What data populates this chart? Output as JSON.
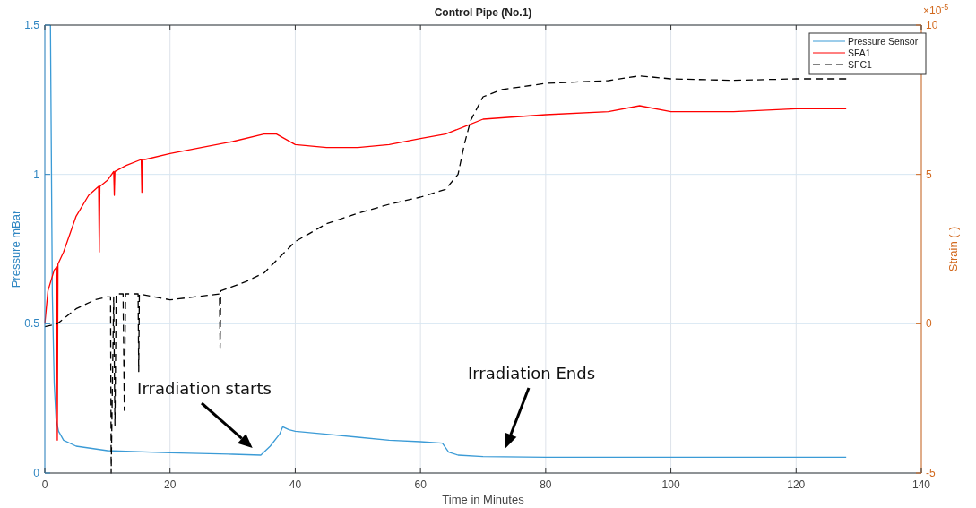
{
  "chart_data": {
    "type": "line",
    "title": "Control Pipe (No.1)",
    "xlabel": "Time in Minutes",
    "ylabel": "Pressure mBar",
    "y2label": "Strain (-)",
    "xlim": [
      0,
      140
    ],
    "xticks": [
      0,
      20,
      40,
      60,
      80,
      100,
      120,
      140
    ],
    "ylim": [
      0,
      1.5
    ],
    "yticks": [
      0,
      0.5,
      1,
      1.5
    ],
    "y2lim": [
      -5,
      10
    ],
    "y2ticks": [
      -5,
      0,
      5,
      10
    ],
    "grid": true,
    "legend": "top right",
    "annotations": [
      "×10$^{-5}$",
      "Irradiation starts",
      "Irradiation Ends"
    ],
    "series": [
      {
        "name": "Pressure Sensor",
        "color": "#3b9bd6",
        "line_style": "solid",
        "x": [
          0.9,
          1.2,
          1.5,
          1.8,
          2.2,
          3,
          5,
          10,
          20,
          30,
          34.5,
          36,
          37.5,
          38,
          39,
          40,
          45,
          50,
          55,
          60,
          63.5,
          64.5,
          66,
          70,
          80,
          100,
          128
        ],
        "values": [
          1.5,
          0.6,
          0.3,
          0.18,
          0.14,
          0.11,
          0.09,
          0.075,
          0.068,
          0.063,
          0.06,
          0.09,
          0.13,
          0.155,
          0.145,
          0.14,
          0.13,
          0.12,
          0.11,
          0.105,
          0.1,
          0.07,
          0.06,
          0.055,
          0.053,
          0.053,
          0.053
        ]
      },
      {
        "name": "SFA1",
        "color": "#ff0000",
        "line_style": "solid",
        "axis": "y2",
        "x": [
          0,
          0.5,
          1.5,
          1.9,
          2,
          2.1,
          3,
          5,
          7,
          8.6,
          8.7,
          8.8,
          10,
          11,
          11.1,
          11.2,
          13,
          15.4,
          15.5,
          15.6,
          16,
          20,
          25,
          30,
          35,
          37,
          40,
          45,
          50,
          55,
          60,
          64,
          67,
          70,
          80,
          90,
          95,
          100,
          110,
          120,
          128
        ],
        "values": [
          0,
          1.1,
          1.8,
          1.9,
          -3.9,
          2,
          2.4,
          3.6,
          4.3,
          4.6,
          2.4,
          4.6,
          4.8,
          5.1,
          4.3,
          5.1,
          5.3,
          5.5,
          4.4,
          5.5,
          5.5,
          5.7,
          5.9,
          6.1,
          6.35,
          6.35,
          6.0,
          5.9,
          5.9,
          6.0,
          6.2,
          6.35,
          6.6,
          6.85,
          7.0,
          7.1,
          7.3,
          7.1,
          7.1,
          7.2,
          7.2
        ]
      },
      {
        "name": "SFC1",
        "color": "#000000",
        "line_style": "dashed",
        "axis": "y2",
        "x": [
          0,
          2,
          5,
          8,
          10,
          10.5,
          10.6,
          11,
          11.2,
          11.4,
          12.5,
          12.7,
          12.9,
          14,
          14.9,
          15,
          15.1,
          20,
          26,
          27.9,
          28,
          28.1,
          32,
          35,
          40,
          45,
          50,
          55,
          60,
          64,
          66,
          67,
          68,
          70,
          73,
          80,
          90,
          95,
          100,
          110,
          120,
          128
        ],
        "values": [
          -0.1,
          0,
          0.5,
          0.8,
          0.9,
          0.9,
          -5,
          0.9,
          -3.4,
          1.0,
          1.0,
          -2.9,
          1.0,
          1.0,
          1.0,
          -1.6,
          1.0,
          0.8,
          0.95,
          1.0,
          -0.8,
          1.1,
          1.4,
          1.7,
          2.75,
          3.35,
          3.7,
          4.0,
          4.24,
          4.5,
          5.0,
          6.0,
          6.8,
          7.6,
          7.84,
          8.05,
          8.14,
          8.3,
          8.2,
          8.15,
          8.2,
          8.2
        ]
      }
    ]
  }
}
